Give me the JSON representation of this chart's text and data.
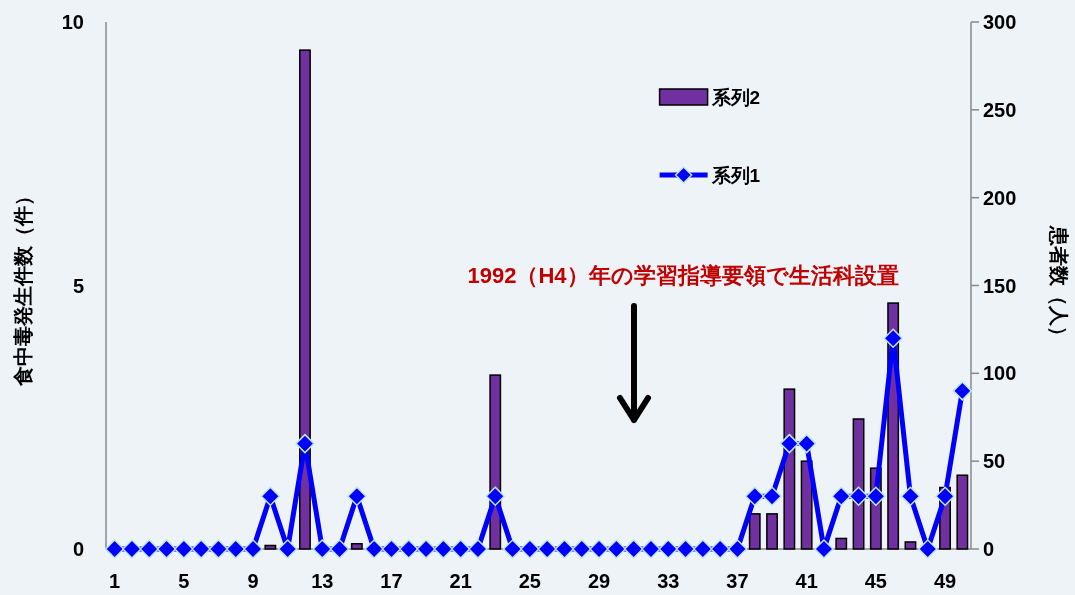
{
  "chart_data": {
    "type": "bar",
    "categories": [
      "1",
      null,
      null,
      null,
      "5",
      null,
      null,
      null,
      "9",
      null,
      null,
      null,
      "13",
      null,
      null,
      null,
      "17",
      null,
      null,
      null,
      "21",
      null,
      null,
      null,
      "25",
      null,
      null,
      null,
      "29",
      null,
      null,
      null,
      "33",
      null,
      null,
      null,
      "37",
      null,
      null,
      null,
      "41",
      null,
      null,
      null,
      "45",
      null,
      null,
      null,
      "49",
      null
    ],
    "series": [
      {
        "name": "系列2",
        "axis": "y2",
        "color": "#7030a0",
        "values": [
          0,
          0,
          0,
          0,
          0,
          0,
          0,
          0,
          0,
          2,
          0,
          284,
          0,
          0,
          3,
          0,
          0,
          0,
          0,
          0,
          0,
          0,
          99,
          0,
          0,
          0,
          0,
          0,
          0,
          0,
          0,
          0,
          0,
          0,
          0,
          0,
          0,
          20,
          20,
          91,
          50,
          0,
          6,
          74,
          46,
          140,
          4,
          0,
          35,
          42
        ]
      },
      {
        "name": "系列1",
        "type": "line",
        "color": "#0000ff",
        "values": [
          0,
          0,
          0,
          0,
          0,
          0,
          0,
          0,
          0,
          1,
          0,
          2,
          0,
          0,
          1,
          0,
          0,
          0,
          0,
          0,
          0,
          0,
          1,
          0,
          0,
          0,
          0,
          0,
          0,
          0,
          0,
          0,
          0,
          0,
          0,
          0,
          0,
          1,
          1,
          2,
          2,
          0,
          1,
          1,
          1,
          4,
          1,
          0,
          1,
          3
        ]
      }
    ],
    "marker": "diamond",
    "ylabel": "食中毒発生件数（件）",
    "y2label": "患者数（人）",
    "ylim": [
      0,
      10
    ],
    "yticks": [
      0,
      5,
      10
    ],
    "y2lim": [
      0,
      300
    ],
    "y2ticks": [
      0,
      50,
      100,
      150,
      200,
      250,
      300
    ],
    "grid": false,
    "legend": "top right",
    "annotations": [
      "1992（H4）年の学習指導要領で生活科設置"
    ]
  }
}
